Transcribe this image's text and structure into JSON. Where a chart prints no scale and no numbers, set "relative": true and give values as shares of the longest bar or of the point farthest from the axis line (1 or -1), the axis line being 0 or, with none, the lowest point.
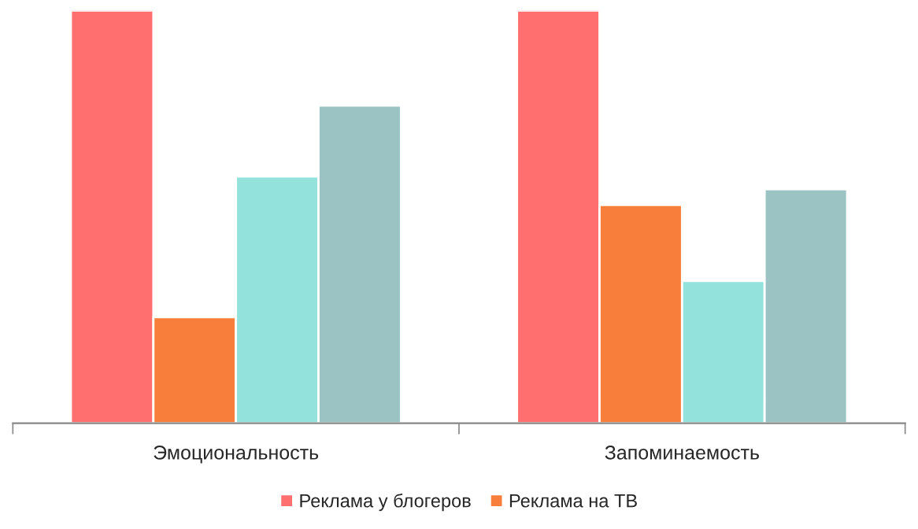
{
  "chart_data": {
    "type": "bar",
    "relative": true,
    "categories": [
      "Эмоциональность",
      "Запоминаемость"
    ],
    "series": [
      {
        "name": "Реклама у блогеров",
        "color": "#ff6f6f",
        "values": [
          1.0,
          1.0
        ]
      },
      {
        "name": "Реклама на ТВ",
        "color": "#f77f3b",
        "values": [
          0.257,
          0.529
        ]
      },
      {
        "color": "#93e3dc",
        "values": [
          0.598,
          0.345
        ]
      },
      {
        "color": "#9cc3c4",
        "values": [
          0.77,
          0.567
        ]
      }
    ],
    "legend": "bottom",
    "grid": false
  }
}
